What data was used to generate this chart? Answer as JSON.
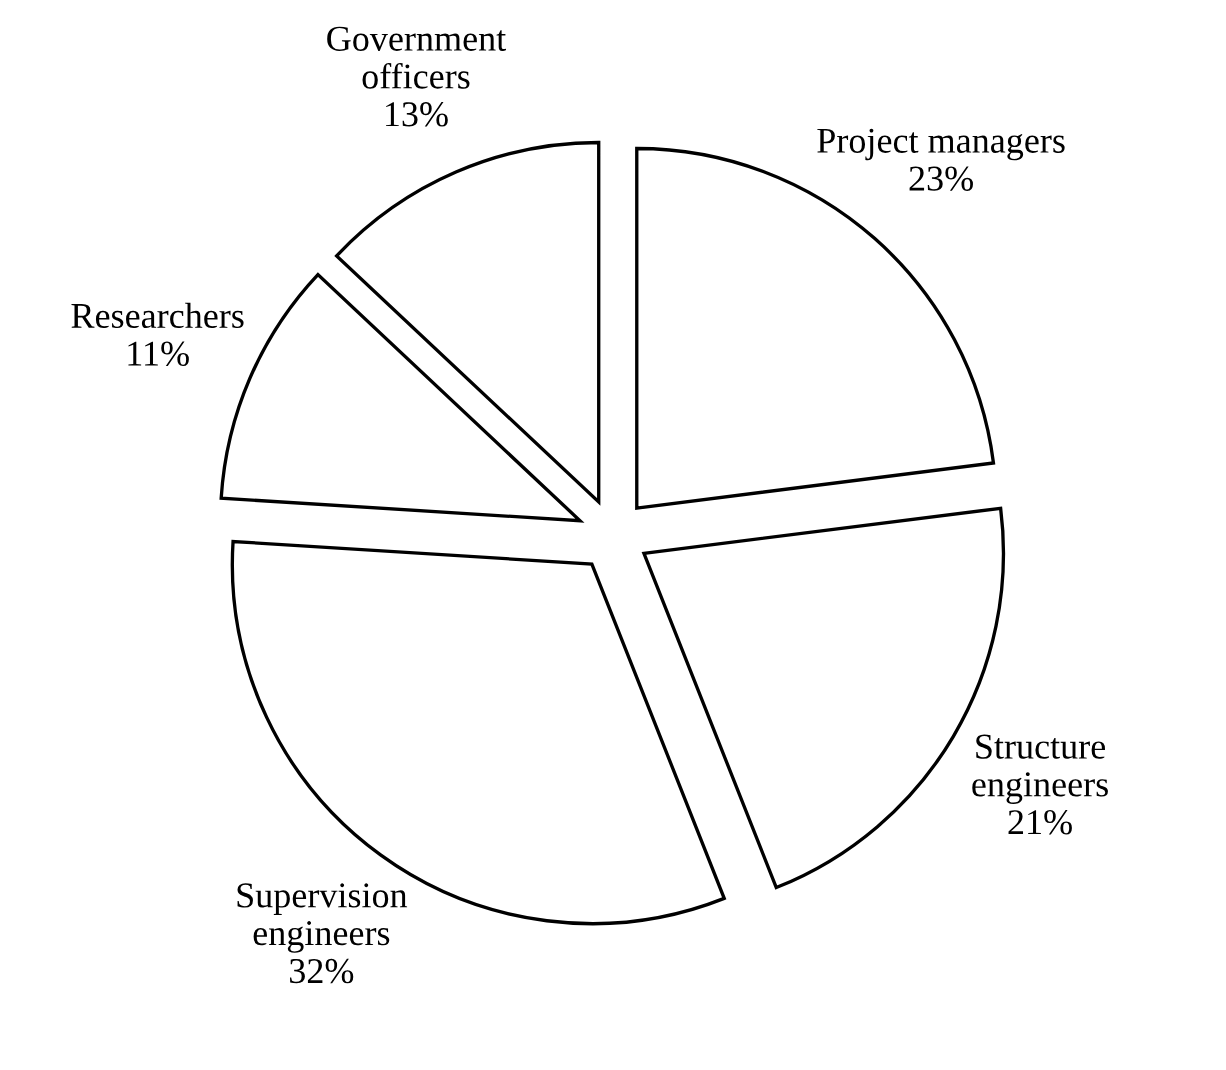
{
  "chart_data": {
    "type": "pie",
    "categories": [
      "Project managers",
      "Structure\nengineers",
      "Supervision\nengineers",
      "Researchers",
      "Government\nofficers"
    ],
    "values": [
      23,
      21,
      32,
      11,
      13
    ],
    "value_labels": [
      "23%",
      "21%",
      "32%",
      "11%",
      "13%"
    ],
    "colors": [
      "#ffffff",
      "#ffffff",
      "#ffffff",
      "#ffffff",
      "#ffffff"
    ],
    "legend": false
  }
}
